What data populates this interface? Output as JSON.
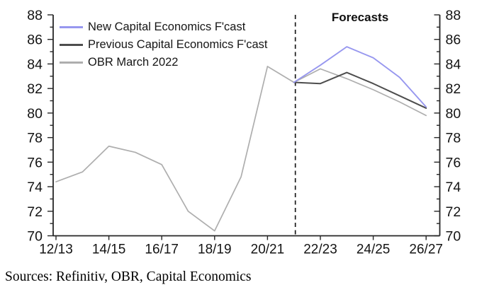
{
  "caption": {
    "text": "Sources: Refinitiv, OBR, Capital Economics"
  },
  "chart_data": {
    "type": "line",
    "title": "",
    "xlabel": "",
    "ylabel": "",
    "categories": [
      "12/13",
      "13/14",
      "14/15",
      "15/16",
      "16/17",
      "17/18",
      "18/19",
      "19/20",
      "20/21",
      "21/22",
      "22/23",
      "23/24",
      "24/25",
      "25/26",
      "26/27"
    ],
    "x_tick_labels": [
      "12/13",
      "14/15",
      "16/17",
      "18/19",
      "20/21",
      "22/23",
      "24/25",
      "26/27"
    ],
    "ylim": [
      70,
      88
    ],
    "y_major_step": 2,
    "y_minor_step": 1,
    "dual_y_axis": true,
    "grid": false,
    "legend_position": "top-left",
    "axis_color": "#262626",
    "series": [
      {
        "name": "New Capital Economics F'cast",
        "color": "#9797ef",
        "values": [
          null,
          null,
          null,
          null,
          null,
          null,
          null,
          null,
          null,
          82.5,
          83.9,
          85.4,
          84.5,
          82.9,
          80.5
        ]
      },
      {
        "name": "Previous Capital Economics F'cast",
        "color": "#4d4d4d",
        "values": [
          null,
          null,
          null,
          null,
          null,
          null,
          null,
          null,
          null,
          82.5,
          82.4,
          83.3,
          82.4,
          81.4,
          80.4
        ]
      },
      {
        "name": "OBR March 2022",
        "color": "#aeaeae",
        "values": [
          74.4,
          75.2,
          77.3,
          76.8,
          75.8,
          72.0,
          70.4,
          74.8,
          83.8,
          82.5,
          83.6,
          82.8,
          81.9,
          80.9,
          79.8
        ]
      }
    ],
    "annotations": {
      "forecast_label": "Forecasts",
      "divider_at_category": "21/22",
      "divider_style": "dashed"
    }
  }
}
